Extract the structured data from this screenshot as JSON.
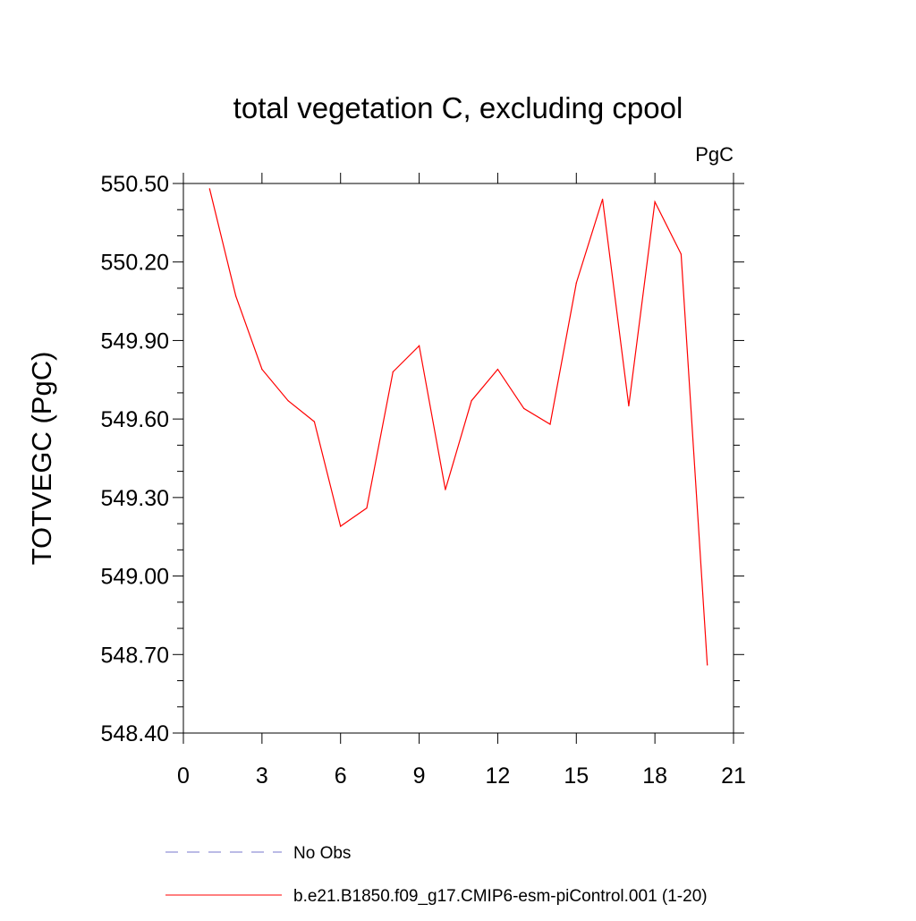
{
  "chart_data": {
    "type": "line",
    "title": "total vegetation C, excluding cpool",
    "units_label": "PgC",
    "ylabel": "TOTVEGC  (PgC)",
    "xlabel": "",
    "xlim": [
      0,
      21
    ],
    "ylim": [
      548.4,
      550.5
    ],
    "x_ticks": [
      0,
      3,
      6,
      9,
      12,
      15,
      18,
      21
    ],
    "x_tick_labels": [
      "0",
      "3",
      "6",
      "9",
      "12",
      "15",
      "18",
      "21"
    ],
    "y_ticks": [
      548.4,
      548.7,
      549.0,
      549.3,
      549.6,
      549.9,
      550.2,
      550.5
    ],
    "y_tick_labels": [
      "548.40",
      "548.70",
      "549.00",
      "549.30",
      "549.60",
      "549.90",
      "550.20",
      "550.50"
    ],
    "grid": false,
    "legend_position": "bottom",
    "series": [
      {
        "name": "b.e21.B1850.f09_g17.CMIP6-esm-piControl.001 (1-20)",
        "color": "#ff0000",
        "style": "solid",
        "x": [
          1,
          2,
          3,
          4,
          5,
          6,
          7,
          8,
          9,
          10,
          11,
          12,
          13,
          14,
          15,
          16,
          17,
          18,
          19,
          20
        ],
        "values": [
          550.48,
          550.07,
          549.79,
          549.67,
          549.59,
          549.19,
          549.26,
          549.78,
          549.88,
          549.33,
          549.67,
          549.79,
          549.64,
          549.58,
          550.12,
          550.44,
          549.65,
          550.43,
          550.23,
          548.66
        ]
      }
    ],
    "legend": [
      {
        "label": "No Obs",
        "color": "#7777cc",
        "style": "dashed"
      },
      {
        "label": "b.e21.B1850.f09_g17.CMIP6-esm-piControl.001 (1-20)",
        "color": "#ff0000",
        "style": "solid"
      }
    ]
  }
}
